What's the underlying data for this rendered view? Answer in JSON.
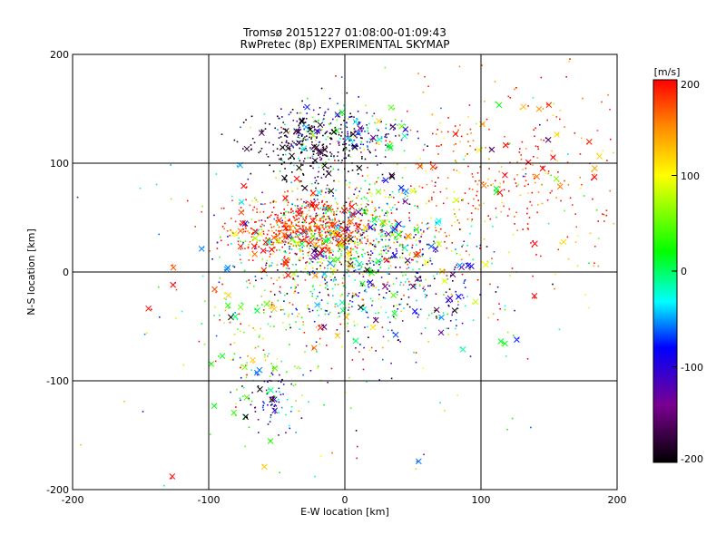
{
  "chart_data": {
    "type": "scatter",
    "title": "Tromsø 20151227 01:08:00-01:09:43",
    "subtitle": "RwPretec (8p) EXPERIMENTAL SKYMAP",
    "xlabel": "E-W location [km]",
    "ylabel": "N-S location [km]",
    "xlim": [
      -200,
      200
    ],
    "ylim": [
      -200,
      200
    ],
    "xticks": [
      "-200",
      "-100",
      "0",
      "100",
      "200"
    ],
    "yticks": [
      "-200",
      "-100",
      "0",
      "100",
      "200"
    ],
    "grid": true,
    "colorbar": {
      "label": "[m/s]",
      "range": [
        -200,
        200
      ],
      "ticks": [
        "200",
        "100",
        "0",
        "-100",
        "-200"
      ],
      "colors": [
        "#000000",
        "#7a0090",
        "#0000ff",
        "#00ffff",
        "#00ff00",
        "#ffff00",
        "#ff8800",
        "#ff0000"
      ]
    },
    "markers": {
      "dots": "velocity sample",
      "crosses": "velocity sample"
    },
    "clusters": [
      {
        "center": [
          -5,
          30
        ],
        "spread": [
          35,
          30
        ],
        "count": 900,
        "velocity_mean": 0,
        "velocity_spread": 120
      },
      {
        "center": [
          -30,
          40
        ],
        "spread": [
          25,
          12
        ],
        "count": 450,
        "velocity_mean": 185,
        "velocity_spread": 25
      },
      {
        "center": [
          -25,
          115
        ],
        "spread": [
          22,
          15
        ],
        "count": 260,
        "velocity_mean": -190,
        "velocity_spread": 25
      },
      {
        "center": [
          0,
          130
        ],
        "spread": [
          25,
          12
        ],
        "count": 200,
        "velocity_mean": -60,
        "velocity_spread": 80
      },
      {
        "center": [
          120,
          85
        ],
        "spread": [
          55,
          40
        ],
        "count": 350,
        "velocity_mean": 175,
        "velocity_spread": 50
      },
      {
        "center": [
          40,
          -15
        ],
        "spread": [
          35,
          30
        ],
        "count": 260,
        "velocity_mean": -80,
        "velocity_spread": 90
      },
      {
        "center": [
          -55,
          -40
        ],
        "spread": [
          30,
          35
        ],
        "count": 160,
        "velocity_mean": 80,
        "velocity_spread": 90
      },
      {
        "center": [
          -55,
          -115
        ],
        "spread": [
          12,
          15
        ],
        "count": 90,
        "velocity_mean": -90,
        "velocity_spread": 70
      },
      {
        "center": [
          20,
          0
        ],
        "spread": [
          90,
          90
        ],
        "count": 280,
        "velocity_mean": 60,
        "velocity_spread": 120
      }
    ],
    "cross_count": 300
  }
}
